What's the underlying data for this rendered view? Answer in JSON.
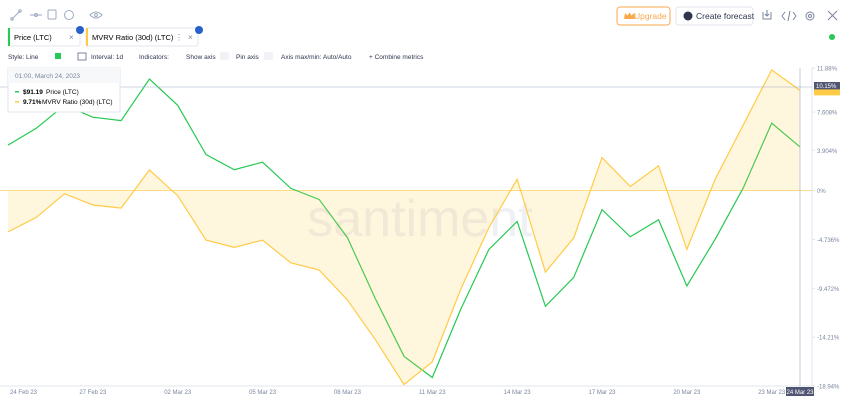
{
  "toolbar": {
    "upgrade": "Upgrade",
    "create_forecast": "Create forecast"
  },
  "tabs": [
    "Price (LTC)",
    "MVRV Ratio (30d) (LTC)"
  ],
  "options": {
    "style": "Style: Line",
    "interval": "Interval: 1d",
    "indicators": "Indicators:",
    "show_axis": "Show axis",
    "pin_axis": "Pin axis",
    "axis_maxmin": "Axis max/min: Auto/Auto",
    "combine": "+ Combine metrics"
  },
  "tooltip": {
    "date": "01:00, March 24, 2023",
    "rows": [
      {
        "value": "$91.19",
        "name": "Price (LTC)"
      },
      {
        "value": "9.71%",
        "name": "MVRV Ratio (30d) (LTC)"
      }
    ]
  },
  "crosshair_label": "10.15%",
  "watermark": "santiment",
  "chart_data": {
    "type": "line",
    "categories": [
      "24 Feb 23",
      null,
      null,
      "27 Feb 23",
      null,
      null,
      "02 Mar 23",
      null,
      null,
      "05 Mar 23",
      null,
      null,
      "08 Mar 23",
      null,
      null,
      "11 Mar 23",
      null,
      null,
      "14 Mar 23",
      null,
      null,
      "17 Mar 23",
      null,
      null,
      "20 Mar 23",
      null,
      null,
      "23 Mar 23",
      "24 Mar 23"
    ],
    "series": [
      {
        "name": "Price (LTC)",
        "color": "#26c953",
        "axis": "y2",
        "values": [
          91.4,
          93.4,
          96.1,
          94.7,
          94.3,
          99.2,
          96.1,
          90.3,
          88.5,
          89.4,
          86.3,
          85.0,
          80.5,
          73.2,
          66.5,
          64.0,
          72.0,
          79.1,
          82.4,
          72.4,
          75.8,
          83.8,
          80.6,
          82.6,
          74.8,
          80.3,
          86.4,
          94.0,
          91.19
        ]
      },
      {
        "name": "MVRV Ratio (30d) (LTC)",
        "color": "#ffcb47",
        "values": [
          -4.0,
          -2.6,
          -0.3,
          -1.4,
          -1.7,
          2.0,
          -0.5,
          -4.8,
          -5.5,
          -4.8,
          -7.0,
          -7.7,
          -10.6,
          -14.5,
          -18.8,
          -16.6,
          -9.6,
          -3.6,
          1.1,
          -7.9,
          -4.6,
          3.2,
          0.4,
          2.4,
          -5.7,
          1.1,
          6.4,
          11.7,
          9.71
        ]
      }
    ],
    "ylim": [
      -18.94,
      11.88
    ],
    "yticks": [
      {
        "value": 11.88,
        "label": "11.88%"
      },
      {
        "value": 7.608,
        "label": "7.608%"
      },
      {
        "value": 3.904,
        "label": "3.904%"
      },
      {
        "value": 0,
        "label": "0%"
      },
      {
        "value": -4.736,
        "label": "-4.736%"
      },
      {
        "value": -9.472,
        "label": "-9.472%"
      },
      {
        "value": -14.21,
        "label": "-14.21%"
      },
      {
        "value": -18.94,
        "label": "-18.94%"
      }
    ],
    "y2lim": [
      63,
      100.5
    ]
  }
}
